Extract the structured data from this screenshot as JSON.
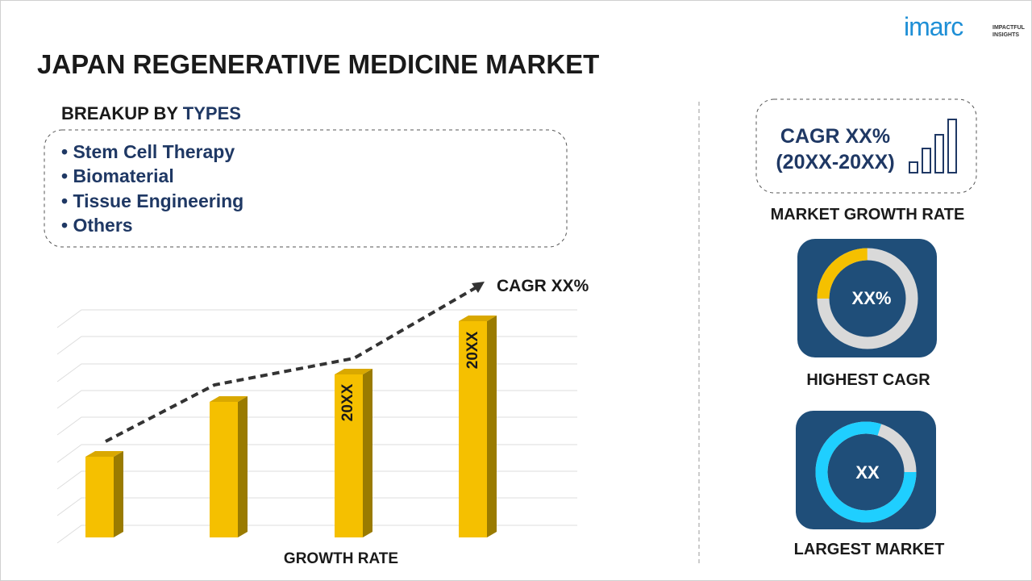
{
  "logo": {
    "name": "imarc",
    "tagline": [
      "IMPACTFUL",
      "INSIGHTS"
    ]
  },
  "title": "JAPAN REGENERATIVE MEDICINE MARKET",
  "breakup": {
    "heading_prefix": "BREAKUP BY",
    "heading_highlight": "TYPES",
    "items": [
      "• Stem Cell Therapy",
      "• Biomaterial",
      "• Tissue Engineering",
      "• Others"
    ]
  },
  "chart": {
    "trend_label": "CAGR XX%",
    "bar_labels": [
      "20XX",
      "20XX"
    ],
    "x_label": "GROWTH RATE"
  },
  "growth": {
    "cagr": "CAGR XX%",
    "period": "(20XX-20XX)",
    "caption": "MARKET GROWTH RATE"
  },
  "highest": {
    "value": "XX%",
    "caption": "HIGHEST CAGR"
  },
  "largest": {
    "value": "XX",
    "caption": "LARGEST MARKET"
  }
}
